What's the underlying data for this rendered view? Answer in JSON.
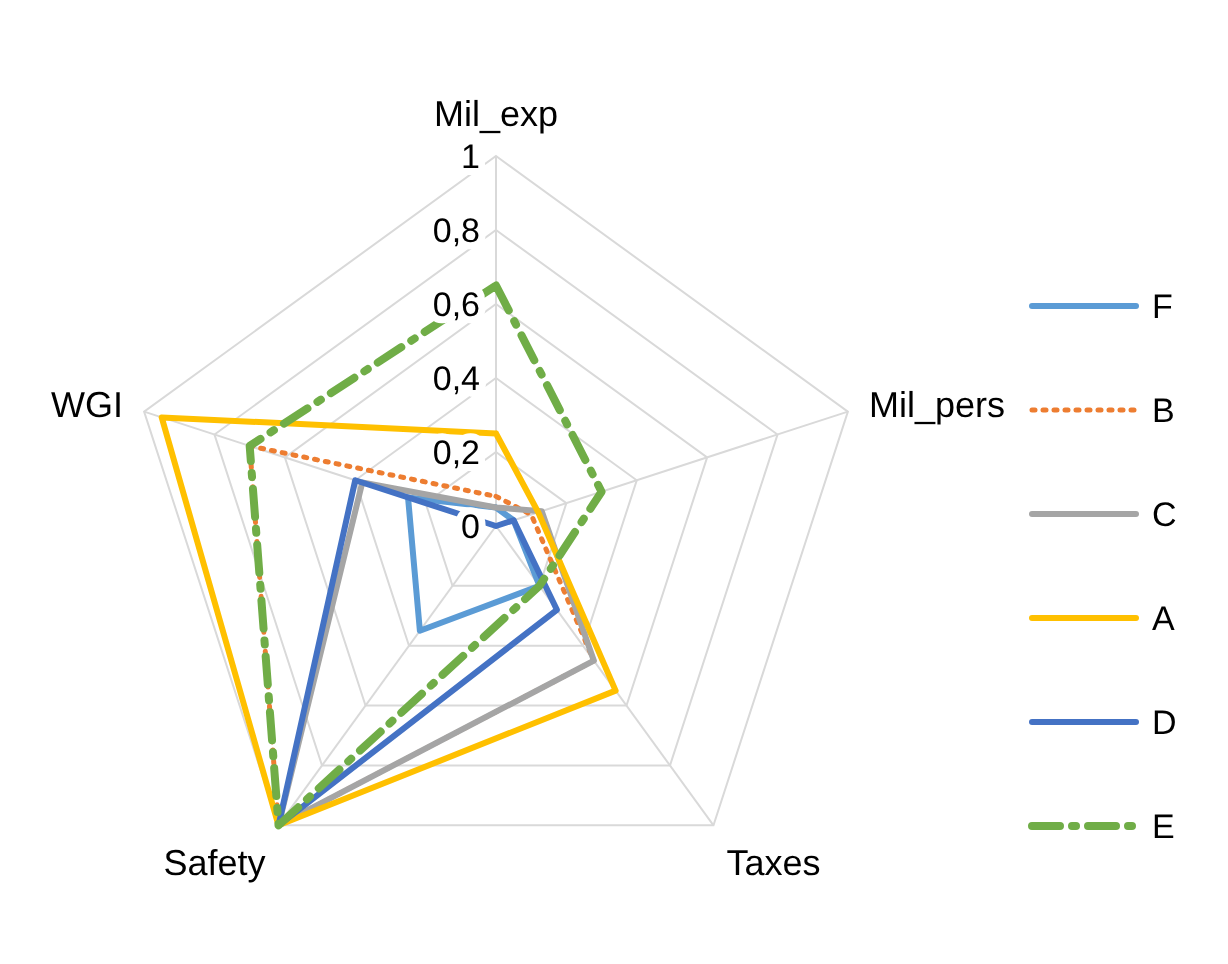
{
  "chart_data": {
    "type": "radar",
    "categories": [
      "Mil_exp",
      "Mil_pers",
      "Taxes",
      "Safety",
      "WGI"
    ],
    "ylim": [
      0,
      1
    ],
    "yticks": [
      {
        "value": 0,
        "label": "0"
      },
      {
        "value": 0.2,
        "label": "0,2"
      },
      {
        "value": 0.4,
        "label": "0,4"
      },
      {
        "value": 0.6,
        "label": "0,6"
      },
      {
        "value": 0.8,
        "label": "0,8"
      },
      1
    ],
    "grid": true,
    "legend": "right",
    "marker": "none",
    "series": [
      {
        "name": "F",
        "color": "#5b9bd5",
        "line_style": "solid",
        "values": [
          0.05,
          0.05,
          0.2,
          0.35,
          0.25
        ]
      },
      {
        "name": "B",
        "color": "#ed7d31",
        "line_style": "dotted",
        "values": [
          0.08,
          0.1,
          0.45,
          1,
          0.7
        ]
      },
      {
        "name": "C",
        "color": "#a5a5a5",
        "line_style": "solid",
        "values": [
          0.05,
          0.13,
          0.45,
          1,
          0.38
        ]
      },
      {
        "name": "A",
        "color": "#ffc000",
        "line_style": "solid",
        "values": [
          0.25,
          0.12,
          0.55,
          1,
          0.95
        ]
      },
      {
        "name": "D",
        "color": "#4472c4",
        "line_style": "solid",
        "values": [
          0,
          0.05,
          0.28,
          1,
          0.4
        ]
      },
      {
        "name": "E",
        "color": "#70ad47",
        "line_style": "dashed",
        "values": [
          0.65,
          0.3,
          0.2,
          1,
          0.7
        ]
      }
    ]
  }
}
